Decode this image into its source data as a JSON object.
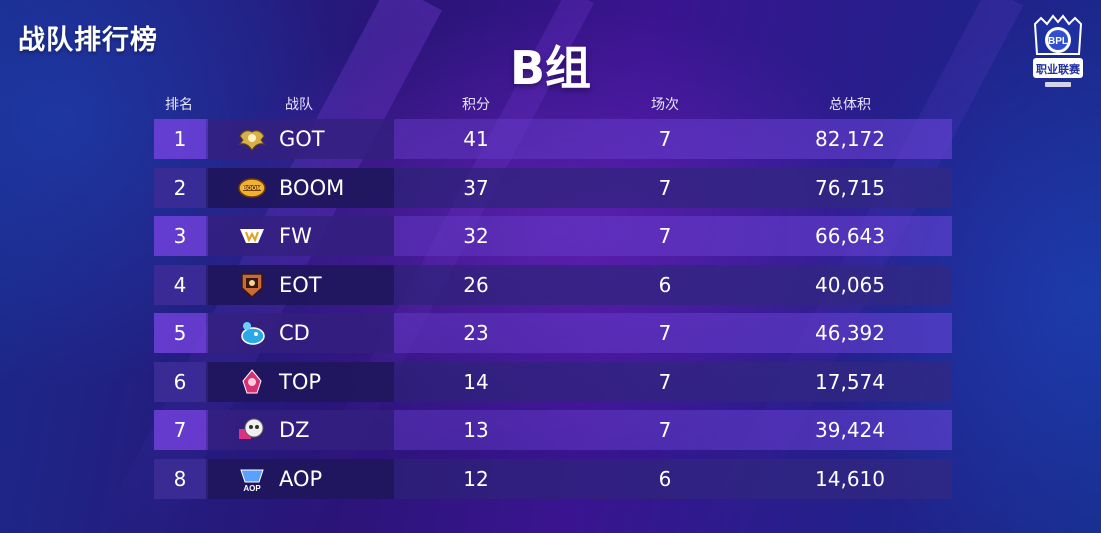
{
  "page_title": "战队排行榜",
  "group_title": "B组",
  "columns": {
    "rank": "排名",
    "team": "战队",
    "points": "积分",
    "matches": "场次",
    "total": "总体积"
  },
  "rows": [
    {
      "rank": "1",
      "team": "GOT",
      "points": "41",
      "matches": "7",
      "total": "82,172",
      "logo_icon": "got-logo-icon"
    },
    {
      "rank": "2",
      "team": "BOOM",
      "points": "37",
      "matches": "7",
      "total": "76,715",
      "logo_icon": "boom-logo-icon"
    },
    {
      "rank": "3",
      "team": "FW",
      "points": "32",
      "matches": "7",
      "total": "66,643",
      "logo_icon": "fw-logo-icon"
    },
    {
      "rank": "4",
      "team": "EOT",
      "points": "26",
      "matches": "6",
      "total": "40,065",
      "logo_icon": "eot-logo-icon"
    },
    {
      "rank": "5",
      "team": "CD",
      "points": "23",
      "matches": "7",
      "total": "46,392",
      "logo_icon": "cd-logo-icon"
    },
    {
      "rank": "6",
      "team": "TOP",
      "points": "14",
      "matches": "7",
      "total": "17,574",
      "logo_icon": "top-logo-icon"
    },
    {
      "rank": "7",
      "team": "DZ",
      "points": "13",
      "matches": "7",
      "total": "39,424",
      "logo_icon": "dz-logo-icon"
    },
    {
      "rank": "8",
      "team": "AOP",
      "points": "12",
      "matches": "6",
      "total": "14,610",
      "logo_icon": "aop-logo-icon"
    }
  ],
  "league_logo": {
    "badge": "BPL",
    "line1": "职业联赛"
  },
  "colors": {
    "background_primary": "#2a1478",
    "background_edge": "#1a2a8a",
    "row_light": "#6e3cd2",
    "row_dark": "#281e6e",
    "text": "#ffffff"
  }
}
